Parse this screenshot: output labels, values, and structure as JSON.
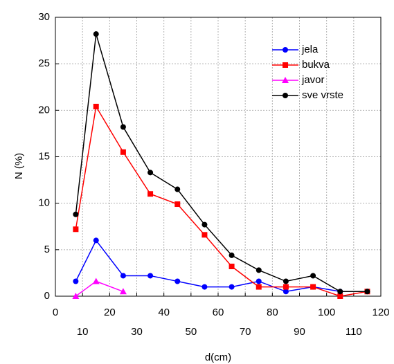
{
  "chart_data": {
    "type": "line",
    "x_label": "d(cm)",
    "y_label": "N (%)",
    "x": [
      7.5,
      15,
      25,
      35,
      45,
      55,
      65,
      75,
      85,
      95,
      105,
      115
    ],
    "series": [
      {
        "name": "jela",
        "color": "#0000ff",
        "marker": "circle",
        "values": [
          1.6,
          6.0,
          2.2,
          2.2,
          1.6,
          1.0,
          1.0,
          1.6,
          0.5,
          1.0,
          0.5,
          null
        ]
      },
      {
        "name": "bukva",
        "color": "#ff0000",
        "marker": "square",
        "values": [
          7.2,
          20.4,
          15.5,
          11.0,
          9.9,
          6.6,
          3.2,
          1.0,
          1.0,
          1.0,
          0.0,
          0.5
        ]
      },
      {
        "name": "javor",
        "color": "#ff00ff",
        "marker": "triangle",
        "values": [
          0.0,
          1.6,
          0.5,
          null,
          null,
          null,
          null,
          null,
          null,
          null,
          null,
          null
        ]
      },
      {
        "name": "sve vrste",
        "color": "#000000",
        "marker": "circle",
        "values": [
          8.8,
          28.2,
          18.2,
          13.3,
          11.5,
          7.7,
          4.4,
          2.8,
          1.6,
          2.2,
          0.5,
          0.5
        ]
      }
    ],
    "xlim": [
      0,
      120
    ],
    "xticks": [
      0,
      10,
      20,
      30,
      40,
      50,
      60,
      70,
      80,
      90,
      100,
      110,
      120
    ],
    "ylim": [
      0,
      30
    ],
    "yticks": [
      0,
      5,
      10,
      15,
      20,
      25,
      30
    ],
    "grid": true,
    "legend": "upper right"
  }
}
